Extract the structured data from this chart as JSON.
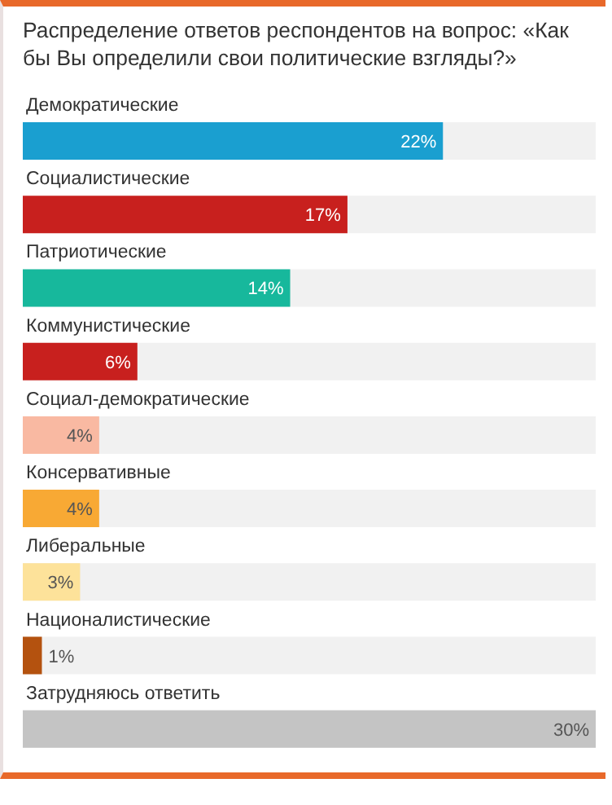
{
  "chart_data": {
    "type": "bar",
    "orientation": "horizontal",
    "title": "Распределение ответов респондентов на вопрос: «Как бы Вы определили свои политические взгляды?»",
    "categories": [
      "Демократические",
      "Социалистические",
      "Патриотические",
      "Коммунистические",
      "Социал-демократические",
      "Консервативные",
      "Либеральные",
      "Националистические",
      "Затрудняюсь ответить"
    ],
    "values": [
      22,
      17,
      14,
      6,
      4,
      4,
      3,
      1,
      30
    ],
    "colors": [
      "#1a9fd0",
      "#c8201e",
      "#17b89c",
      "#c8201e",
      "#f9b9a2",
      "#f8a934",
      "#fde29a",
      "#b4520f",
      "#c4c4c4"
    ],
    "value_labels": [
      "22%",
      "17%",
      "14%",
      "6%",
      "4%",
      "4%",
      "3%",
      "1%",
      "30%"
    ]
  }
}
